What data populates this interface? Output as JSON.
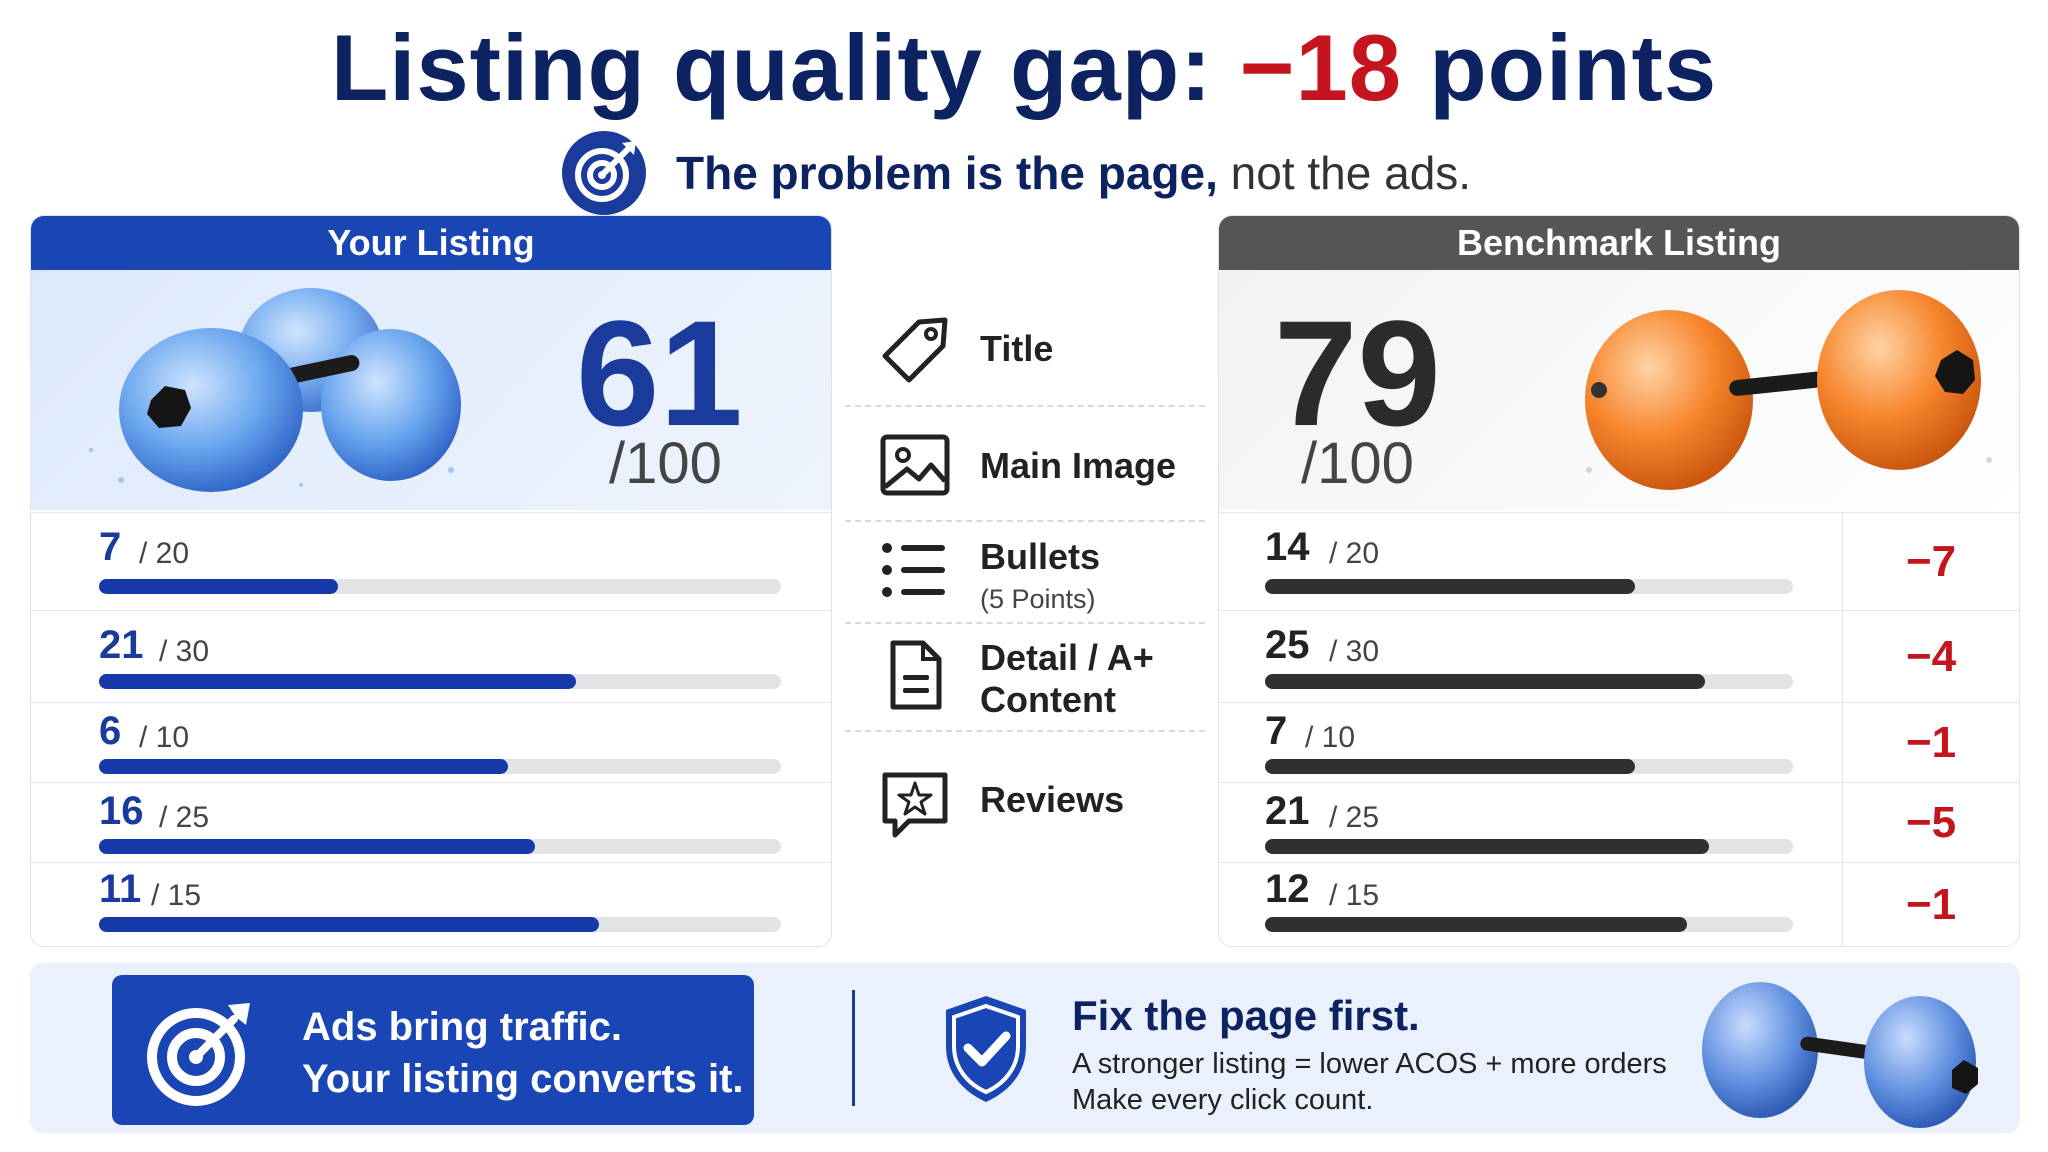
{
  "title": {
    "prefix": "Listing quality gap:",
    "gap": "−18",
    "suffix": "points"
  },
  "subtitle": {
    "strong": "The problem is the page,",
    "light": "not the ads."
  },
  "your_listing": {
    "header": "Your Listing",
    "score": "61",
    "out_of": "/100",
    "rows": [
      {
        "value": "7",
        "max": "/ 20",
        "fraction": 0.35
      },
      {
        "value": "21",
        "max": "/ 30",
        "fraction": 0.7
      },
      {
        "value": "6",
        "max": "/ 10",
        "fraction": 0.6
      },
      {
        "value": "16",
        "max": "/ 25",
        "fraction": 0.64
      },
      {
        "value": "11",
        "max": "/ 15",
        "fraction": 0.733
      }
    ]
  },
  "benchmark_listing": {
    "header": "Benchmark Listing",
    "score": "79",
    "out_of": "/100",
    "rows": [
      {
        "value": "14",
        "max": "/ 20",
        "fraction": 0.7,
        "delta": "−7"
      },
      {
        "value": "25",
        "max": "/ 30",
        "fraction": 0.833,
        "delta": "−4"
      },
      {
        "value": "7",
        "max": "/ 10",
        "fraction": 0.7,
        "delta": "−1"
      },
      {
        "value": "21",
        "max": "/ 25",
        "fraction": 0.84,
        "delta": "−5"
      },
      {
        "value": "12",
        "max": "/ 15",
        "fraction": 0.8,
        "delta": "−1"
      }
    ]
  },
  "categories": [
    {
      "label": "Title",
      "note": "",
      "icon": "tag-icon"
    },
    {
      "label": "Main Image",
      "note": "",
      "icon": "image-icon"
    },
    {
      "label": "Bullets",
      "note": "(5 Points)",
      "icon": "list-icon"
    },
    {
      "label": "Detail / A+",
      "label2": "Content",
      "note": "",
      "icon": "document-icon"
    },
    {
      "label": "Reviews",
      "note": "",
      "icon": "star-chat-icon"
    }
  ],
  "footer": {
    "cta_line1": "Ads bring traffic.",
    "cta_line2": "Your listing converts it.",
    "fix_title": "Fix the page first.",
    "fix_line1": "A stronger listing = lower ACOS + more orders",
    "fix_line2": "Make every click count."
  },
  "colors": {
    "brand_blue": "#1a45b4",
    "navy": "#0d2260",
    "alert_red": "#c4141d",
    "benchmark_gray": "#555557",
    "dumbbell_orange": "#f07a1e"
  }
}
